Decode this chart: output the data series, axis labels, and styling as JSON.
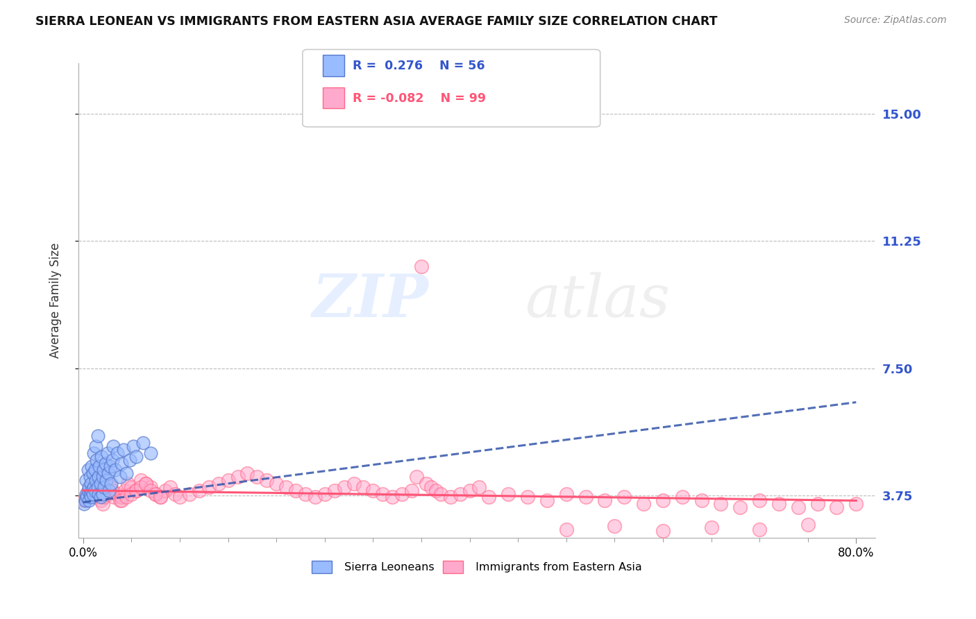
{
  "title": "SIERRA LEONEAN VS IMMIGRANTS FROM EASTERN ASIA AVERAGE FAMILY SIZE CORRELATION CHART",
  "source": "Source: ZipAtlas.com",
  "ylabel": "Average Family Size",
  "xlim": [
    -0.005,
    0.82
  ],
  "ylim": [
    2.5,
    16.5
  ],
  "yticks": [
    3.75,
    7.5,
    11.25,
    15.0
  ],
  "xticks": [
    0.0,
    0.8
  ],
  "xtick_labels": [
    "0.0%",
    "80.0%"
  ],
  "blue_R": 0.276,
  "blue_N": 56,
  "pink_R": -0.082,
  "pink_N": 99,
  "blue_color": "#99bbff",
  "blue_edge_color": "#5577cc",
  "pink_color": "#ffaacc",
  "pink_edge_color": "#ff6688",
  "blue_line_color": "#3355aa",
  "pink_line_color": "#ff5577",
  "right_axis_color": "#3355cc",
  "blue_line_x0": 0.0,
  "blue_line_y0": 3.55,
  "blue_line_x1": 0.8,
  "blue_line_y1": 6.5,
  "pink_line_x0": 0.0,
  "pink_line_y0": 3.9,
  "pink_line_x1": 0.8,
  "pink_line_y1": 3.6,
  "blue_scatter_x": [
    0.001,
    0.002,
    0.003,
    0.003,
    0.004,
    0.005,
    0.005,
    0.006,
    0.006,
    0.007,
    0.007,
    0.008,
    0.008,
    0.009,
    0.009,
    0.01,
    0.01,
    0.011,
    0.011,
    0.012,
    0.012,
    0.013,
    0.013,
    0.014,
    0.015,
    0.015,
    0.016,
    0.016,
    0.017,
    0.018,
    0.018,
    0.019,
    0.02,
    0.02,
    0.021,
    0.022,
    0.023,
    0.024,
    0.025,
    0.026,
    0.027,
    0.028,
    0.029,
    0.03,
    0.031,
    0.033,
    0.035,
    0.038,
    0.04,
    0.042,
    0.045,
    0.048,
    0.052,
    0.055,
    0.062,
    0.07
  ],
  "blue_scatter_y": [
    3.5,
    3.6,
    3.8,
    4.2,
    3.7,
    3.9,
    4.5,
    3.6,
    4.0,
    3.8,
    4.3,
    3.7,
    4.1,
    3.9,
    4.6,
    3.8,
    4.4,
    4.0,
    5.0,
    3.9,
    4.5,
    4.2,
    5.2,
    4.8,
    4.0,
    5.5,
    4.3,
    3.8,
    4.6,
    4.1,
    3.7,
    4.9,
    4.3,
    3.8,
    4.5,
    4.0,
    4.7,
    4.2,
    5.0,
    4.4,
    3.9,
    4.6,
    4.1,
    4.8,
    5.2,
    4.5,
    5.0,
    4.3,
    4.7,
    5.1,
    4.4,
    4.8,
    5.2,
    4.9,
    5.3,
    5.0
  ],
  "pink_scatter_x": [
    0.001,
    0.003,
    0.006,
    0.008,
    0.01,
    0.012,
    0.015,
    0.018,
    0.02,
    0.022,
    0.025,
    0.028,
    0.03,
    0.032,
    0.035,
    0.038,
    0.04,
    0.043,
    0.046,
    0.05,
    0.055,
    0.06,
    0.065,
    0.07,
    0.075,
    0.08,
    0.085,
    0.09,
    0.095,
    0.1,
    0.11,
    0.12,
    0.13,
    0.14,
    0.15,
    0.16,
    0.17,
    0.18,
    0.19,
    0.2,
    0.21,
    0.22,
    0.23,
    0.24,
    0.25,
    0.26,
    0.27,
    0.28,
    0.29,
    0.3,
    0.31,
    0.32,
    0.33,
    0.34,
    0.345,
    0.35,
    0.355,
    0.36,
    0.365,
    0.37,
    0.38,
    0.39,
    0.4,
    0.41,
    0.42,
    0.44,
    0.46,
    0.48,
    0.5,
    0.52,
    0.54,
    0.56,
    0.58,
    0.6,
    0.62,
    0.64,
    0.66,
    0.68,
    0.7,
    0.72,
    0.74,
    0.76,
    0.78,
    0.8,
    0.5,
    0.55,
    0.6,
    0.65,
    0.7,
    0.75,
    0.04,
    0.045,
    0.05,
    0.055,
    0.06,
    0.065,
    0.07,
    0.075,
    0.08
  ],
  "pink_scatter_y": [
    3.6,
    3.7,
    3.8,
    3.9,
    3.7,
    4.0,
    3.8,
    3.6,
    3.5,
    3.7,
    3.8,
    4.0,
    3.9,
    3.7,
    3.8,
    3.6,
    3.7,
    3.9,
    4.1,
    4.0,
    3.9,
    4.2,
    4.1,
    4.0,
    3.8,
    3.7,
    3.9,
    4.0,
    3.8,
    3.7,
    3.8,
    3.9,
    4.0,
    4.1,
    4.2,
    4.3,
    4.4,
    4.3,
    4.2,
    4.1,
    4.0,
    3.9,
    3.8,
    3.7,
    3.8,
    3.9,
    4.0,
    4.1,
    4.0,
    3.9,
    3.8,
    3.7,
    3.8,
    3.9,
    4.3,
    10.5,
    4.1,
    4.0,
    3.9,
    3.8,
    3.7,
    3.8,
    3.9,
    4.0,
    3.7,
    3.8,
    3.7,
    3.6,
    3.8,
    3.7,
    3.6,
    3.7,
    3.5,
    3.6,
    3.7,
    3.6,
    3.5,
    3.4,
    3.6,
    3.5,
    3.4,
    3.5,
    3.4,
    3.5,
    2.75,
    2.85,
    2.7,
    2.8,
    2.75,
    2.9,
    3.6,
    3.7,
    3.8,
    3.9,
    4.0,
    4.1,
    3.9,
    3.8,
    3.7
  ]
}
